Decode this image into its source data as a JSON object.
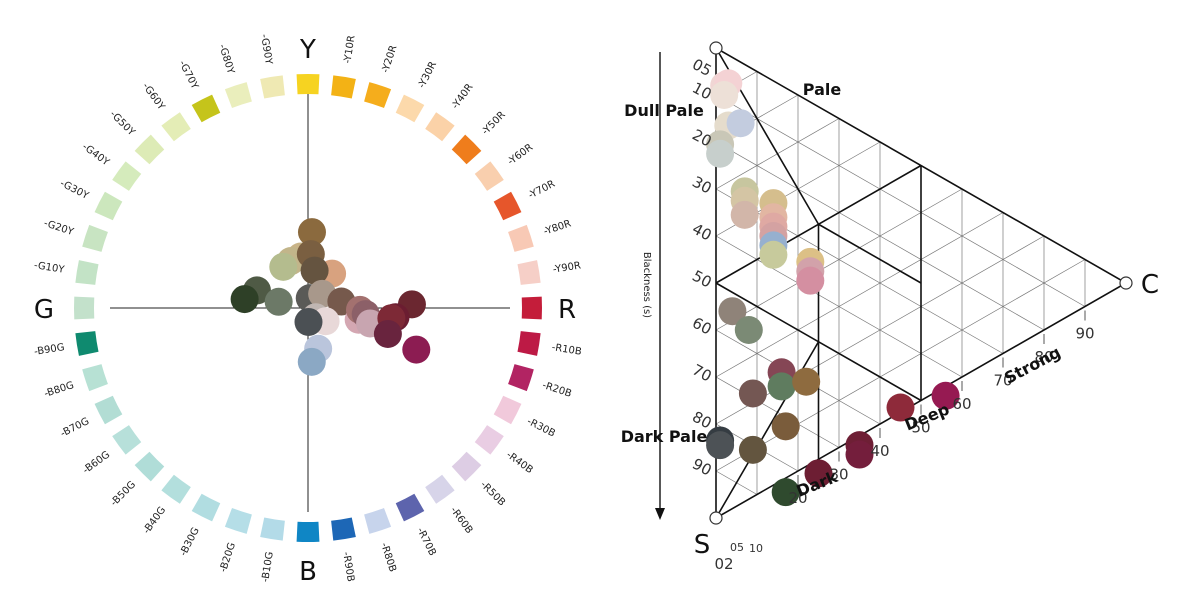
{
  "circle": {
    "poles": {
      "top": "Y",
      "right": "R",
      "bottom": "B",
      "left": "G"
    },
    "hue_segments": [
      {
        "label": "Y",
        "color": "#f6d321"
      },
      {
        "label": "Y10R",
        "color": "#f3b215"
      },
      {
        "label": "Y20R",
        "color": "#f5ad1c"
      },
      {
        "label": "Y30R",
        "color": "#fcd9ab"
      },
      {
        "label": "Y40R",
        "color": "#fbd2a8"
      },
      {
        "label": "Y50R",
        "color": "#ef7d1c"
      },
      {
        "label": "Y60R",
        "color": "#f9cfae"
      },
      {
        "label": "Y70R",
        "color": "#e6562b"
      },
      {
        "label": "Y80R",
        "color": "#f8c9b5"
      },
      {
        "label": "Y90R",
        "color": "#f6cfc7"
      },
      {
        "label": "R",
        "color": "#c41d3a"
      },
      {
        "label": "R10B",
        "color": "#bd1a45"
      },
      {
        "label": "R20B",
        "color": "#b22463"
      },
      {
        "label": "R30B",
        "color": "#f1c9db"
      },
      {
        "label": "R40B",
        "color": "#e9cde3"
      },
      {
        "label": "R50B",
        "color": "#ddcde4"
      },
      {
        "label": "R60B",
        "color": "#d7d4e9"
      },
      {
        "label": "R70B",
        "color": "#5d64ad"
      },
      {
        "label": "R80B",
        "color": "#c7d4ec"
      },
      {
        "label": "R90B",
        "color": "#1d67b6"
      },
      {
        "label": "B",
        "color": "#0f86c5"
      },
      {
        "label": "B10G",
        "color": "#b3dbe8"
      },
      {
        "label": "B20G",
        "color": "#b5dee7"
      },
      {
        "label": "B30G",
        "color": "#b1dde1"
      },
      {
        "label": "B40G",
        "color": "#b3dfdd"
      },
      {
        "label": "B50G",
        "color": "#b0ddd8"
      },
      {
        "label": "B60G",
        "color": "#b7e0da"
      },
      {
        "label": "B70G",
        "color": "#b2ddd4"
      },
      {
        "label": "B80G",
        "color": "#b7e1d4"
      },
      {
        "label": "B90G",
        "color": "#0f8a6f"
      },
      {
        "label": "G",
        "color": "#c3e1cb"
      },
      {
        "label": "G10Y",
        "color": "#c3e3c6"
      },
      {
        "label": "G20Y",
        "color": "#c8e4c2"
      },
      {
        "label": "G30Y",
        "color": "#ccE7bd"
      },
      {
        "label": "G40Y",
        "color": "#d5ebbc"
      },
      {
        "label": "G50Y",
        "color": "#ddebb6"
      },
      {
        "label": "G60Y",
        "color": "#e4edb6"
      },
      {
        "label": "G70Y",
        "color": "#c5c41b"
      },
      {
        "label": "G80Y",
        "color": "#eaeebc"
      },
      {
        "label": "G90Y",
        "color": "#efe9b3"
      }
    ],
    "samples": [
      {
        "color": "#8b6a3e",
        "hue_deg": 3,
        "radius": 0.38
      },
      {
        "color": "#c9b488",
        "hue_deg": -8,
        "radius": 0.26
      },
      {
        "color": "#c2b58a",
        "hue_deg": -20,
        "radius": 0.25
      },
      {
        "color": "#7a5f41",
        "hue_deg": 3,
        "radius": 0.27
      },
      {
        "color": "#b4bc8e",
        "hue_deg": -31,
        "radius": 0.24
      },
      {
        "color": "#d8a27f",
        "hue_deg": 35,
        "radius": 0.21
      },
      {
        "color": "#655440",
        "hue_deg": 10,
        "radius": 0.19
      },
      {
        "color": "#4f5a45",
        "hue_deg": -71,
        "radius": 0.27
      },
      {
        "color": "#6c7967",
        "hue_deg": -78,
        "radius": 0.15
      },
      {
        "color": "#2e4027",
        "hue_deg": -82,
        "radius": 0.32
      },
      {
        "color": "#5a5a57",
        "hue_deg": 10,
        "radius": 0.05
      },
      {
        "color": "#a8988b",
        "hue_deg": 45,
        "radius": 0.1
      },
      {
        "color": "#76594c",
        "hue_deg": 79,
        "radius": 0.17
      },
      {
        "color": "#c0b6b2",
        "hue_deg": 140,
        "radius": 0.06
      },
      {
        "color": "#d4a7b2",
        "hue_deg": 103,
        "radius": 0.26
      },
      {
        "color": "#a3716f",
        "hue_deg": 92,
        "radius": 0.26
      },
      {
        "color": "#8c6068",
        "hue_deg": 96,
        "radius": 0.29
      },
      {
        "color": "#e8d8d8",
        "hue_deg": 127,
        "radius": 0.11
      },
      {
        "color": "#c8a5b0",
        "hue_deg": 104,
        "radius": 0.32
      },
      {
        "color": "#6b2730",
        "hue_deg": 88,
        "radius": 0.52
      },
      {
        "color": "#6b1d31",
        "hue_deg": 96,
        "radius": 0.44
      },
      {
        "color": "#7d2936",
        "hue_deg": 97,
        "radius": 0.42
      },
      {
        "color": "#69243e",
        "hue_deg": 108,
        "radius": 0.42
      },
      {
        "color": "#8c1c52",
        "hue_deg": 111,
        "radius": 0.58
      },
      {
        "color": "#bac5dc",
        "hue_deg": 166,
        "radius": 0.21
      },
      {
        "color": "#8ba8c4",
        "hue_deg": 176,
        "radius": 0.27
      },
      {
        "color": "#4b5054",
        "hue_deg": 178,
        "radius": 0.07
      }
    ]
  },
  "triangle": {
    "vertex_labels": {
      "white": "",
      "black": "S",
      "chromatic": "C"
    },
    "region_labels": [
      "Pale",
      "Dull Pale",
      "Dark Pale",
      "Strong",
      "Deep",
      "Dark"
    ],
    "blackness_axis_title": "Blackness (s)",
    "blackness_ticks": [
      "05",
      "10",
      "20",
      "30",
      "40",
      "50",
      "60",
      "70",
      "80",
      "90"
    ],
    "chromaticness_ticks": [
      "20",
      "30",
      "40",
      "50",
      "60",
      "70",
      "80",
      "90"
    ],
    "bottom_small_ticks": [
      "02",
      "05",
      "10"
    ],
    "samples": [
      {
        "color": "#f0d6d4",
        "s": 7,
        "c": 2
      },
      {
        "color": "#f4d2d4",
        "s": 6,
        "c": 3
      },
      {
        "color": "#ede0d7",
        "s": 9,
        "c": 2
      },
      {
        "color": "#e5dccc",
        "s": 15,
        "c": 3
      },
      {
        "color": "#c3ccdf",
        "s": 13,
        "c": 6
      },
      {
        "color": "#c9c7b7",
        "s": 20,
        "c": 1
      },
      {
        "color": "#c7cfcc",
        "s": 22,
        "c": 1
      },
      {
        "color": "#c7c69f",
        "s": 27,
        "c": 7
      },
      {
        "color": "#d4c5a4",
        "s": 29,
        "c": 7
      },
      {
        "color": "#d2b6a9",
        "s": 32,
        "c": 7
      },
      {
        "color": "#d5be8d",
        "s": 26,
        "c": 14
      },
      {
        "color": "#e2b6a2",
        "s": 29,
        "c": 14
      },
      {
        "color": "#dfa9a3",
        "s": 31,
        "c": 14
      },
      {
        "color": "#d4a2a2",
        "s": 33,
        "c": 14
      },
      {
        "color": "#96b0cf",
        "s": 35,
        "c": 14
      },
      {
        "color": "#c7ca9c",
        "s": 37,
        "c": 14
      },
      {
        "color": "#dcc086",
        "s": 34,
        "c": 23
      },
      {
        "color": "#d2a2aa",
        "s": 36,
        "c": 23
      },
      {
        "color": "#d48fa1",
        "s": 38,
        "c": 23
      },
      {
        "color": "#8f8379",
        "s": 54,
        "c": 4
      },
      {
        "color": "#7b8a75",
        "s": 56,
        "c": 8
      },
      {
        "color": "#854655",
        "s": 61,
        "c": 16
      },
      {
        "color": "#5f7c5f",
        "s": 64,
        "c": 16
      },
      {
        "color": "#8e6b3f",
        "s": 60,
        "c": 22
      },
      {
        "color": "#745753",
        "s": 69,
        "c": 9
      },
      {
        "color": "#7a5c3b",
        "s": 72,
        "c": 17
      },
      {
        "color": "#8e2a3a",
        "s": 54,
        "c": 45
      },
      {
        "color": "#961a52",
        "s": 46,
        "c": 56
      },
      {
        "color": "#6e1f35",
        "s": 67,
        "c": 35
      },
      {
        "color": "#741e3c",
        "s": 69,
        "c": 35
      },
      {
        "color": "#63553f",
        "s": 81,
        "c": 9
      },
      {
        "color": "#6d1e33",
        "s": 78,
        "c": 25
      },
      {
        "color": "#2f4a2e",
        "s": 86,
        "c": 17
      },
      {
        "color": "#353c42",
        "s": 83,
        "c": 1
      },
      {
        "color": "#4d5256",
        "s": 84,
        "c": 1
      }
    ]
  }
}
